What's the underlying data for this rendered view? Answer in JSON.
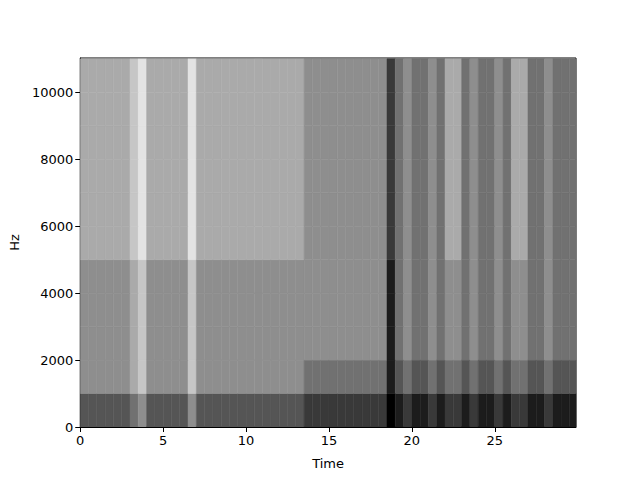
{
  "chart_data": {
    "type": "heatmap",
    "xlabel": "Time",
    "ylabel": "Hz",
    "xlim": [
      0,
      29.9
    ],
    "ylim": [
      0,
      11025
    ],
    "xticks": [
      0,
      5,
      10,
      15,
      20,
      25
    ],
    "yticks": [
      0,
      2000,
      4000,
      6000,
      8000,
      10000
    ],
    "grid": false,
    "value_range": [
      0,
      9
    ],
    "x": [
      0.25,
      0.75,
      1.25,
      1.75,
      2.25,
      2.75,
      3.25,
      3.75,
      4.25,
      4.75,
      5.25,
      5.75,
      6.25,
      6.75,
      7.25,
      7.75,
      8.25,
      8.75,
      9.25,
      9.75,
      10.25,
      10.75,
      11.25,
      11.75,
      12.25,
      12.75,
      13.25,
      13.75,
      14.25,
      14.75,
      15.25,
      15.75,
      16.25,
      16.75,
      17.25,
      17.75,
      18.25,
      18.75,
      19.25,
      19.75,
      20.25,
      20.75,
      21.25,
      21.75,
      22.25,
      22.75,
      23.25,
      23.75,
      24.25,
      24.75,
      25.25,
      25.75,
      26.25,
      26.75,
      27.25,
      27.75,
      28.25,
      28.75,
      29.25,
      29.75
    ],
    "y": [
      500,
      1500,
      2500,
      3500,
      4500,
      5500,
      6500,
      7500,
      8500,
      9500,
      10500
    ],
    "cells": [
      [
        6,
        6,
        6,
        6,
        6,
        6,
        5,
        4,
        6,
        6,
        6,
        6,
        6,
        4,
        6,
        6,
        6,
        6,
        6,
        6,
        6,
        6,
        6,
        6,
        6,
        6,
        6,
        7,
        7,
        7,
        7,
        7,
        7,
        7,
        7,
        7,
        7,
        9,
        8,
        7,
        8,
        8,
        7,
        8,
        7,
        7,
        8,
        7,
        8,
        8,
        7,
        8,
        7,
        7,
        8,
        8,
        7,
        8,
        8,
        8
      ],
      [
        4,
        4,
        4,
        4,
        4,
        4,
        3,
        2,
        4,
        4,
        4,
        4,
        4,
        2,
        4,
        4,
        4,
        4,
        4,
        4,
        4,
        4,
        4,
        4,
        4,
        4,
        4,
        5,
        5,
        5,
        5,
        5,
        5,
        5,
        5,
        5,
        5,
        8,
        6,
        5,
        6,
        6,
        5,
        6,
        5,
        5,
        6,
        5,
        6,
        6,
        5,
        6,
        5,
        5,
        6,
        6,
        5,
        6,
        6,
        6
      ],
      [
        4,
        4,
        4,
        4,
        4,
        4,
        3,
        2,
        4,
        4,
        4,
        4,
        4,
        2,
        4,
        4,
        4,
        4,
        4,
        4,
        4,
        4,
        4,
        4,
        4,
        4,
        4,
        4,
        4,
        4,
        4,
        4,
        4,
        4,
        4,
        4,
        4,
        8,
        5,
        4,
        5,
        5,
        4,
        5,
        4,
        4,
        5,
        4,
        5,
        5,
        4,
        5,
        4,
        4,
        5,
        5,
        4,
        5,
        5,
        5
      ],
      [
        4,
        4,
        4,
        4,
        4,
        4,
        3,
        2,
        4,
        4,
        4,
        4,
        4,
        2,
        4,
        4,
        4,
        4,
        4,
        4,
        4,
        4,
        4,
        4,
        4,
        4,
        4,
        4,
        4,
        4,
        4,
        4,
        4,
        4,
        4,
        4,
        4,
        8,
        5,
        4,
        5,
        5,
        4,
        5,
        4,
        4,
        5,
        4,
        5,
        5,
        4,
        5,
        4,
        4,
        5,
        5,
        4,
        5,
        5,
        5
      ],
      [
        4,
        4,
        4,
        4,
        4,
        4,
        3,
        2,
        4,
        4,
        4,
        4,
        4,
        2,
        4,
        4,
        4,
        4,
        4,
        4,
        4,
        4,
        4,
        4,
        4,
        4,
        4,
        4,
        4,
        4,
        4,
        4,
        4,
        4,
        4,
        4,
        4,
        8,
        5,
        4,
        5,
        5,
        4,
        5,
        4,
        4,
        5,
        4,
        5,
        5,
        4,
        5,
        4,
        4,
        5,
        5,
        4,
        5,
        5,
        5
      ],
      [
        3,
        3,
        3,
        3,
        3,
        3,
        2,
        1,
        3,
        3,
        3,
        3,
        3,
        1,
        3,
        3,
        3,
        3,
        3,
        3,
        3,
        3,
        3,
        3,
        3,
        3,
        3,
        4,
        4,
        4,
        4,
        4,
        4,
        4,
        4,
        4,
        4,
        7,
        5,
        4,
        5,
        5,
        4,
        5,
        3,
        3,
        5,
        4,
        5,
        5,
        4,
        5,
        3,
        3,
        5,
        5,
        4,
        5,
        5,
        5
      ],
      [
        3,
        3,
        3,
        3,
        3,
        3,
        2,
        1,
        3,
        3,
        3,
        3,
        3,
        1,
        3,
        3,
        3,
        3,
        3,
        3,
        3,
        3,
        3,
        3,
        3,
        3,
        3,
        4,
        4,
        4,
        4,
        4,
        4,
        4,
        4,
        4,
        4,
        7,
        5,
        4,
        5,
        5,
        4,
        5,
        3,
        3,
        5,
        4,
        5,
        5,
        4,
        5,
        3,
        3,
        5,
        5,
        4,
        5,
        5,
        5
      ],
      [
        3,
        3,
        3,
        3,
        3,
        3,
        2,
        1,
        3,
        3,
        3,
        3,
        3,
        1,
        3,
        3,
        3,
        3,
        3,
        3,
        3,
        3,
        3,
        3,
        3,
        3,
        3,
        4,
        4,
        4,
        4,
        4,
        4,
        4,
        4,
        4,
        4,
        7,
        5,
        4,
        5,
        5,
        4,
        5,
        3,
        3,
        5,
        4,
        5,
        5,
        4,
        5,
        3,
        3,
        5,
        5,
        4,
        5,
        5,
        5
      ],
      [
        3,
        3,
        3,
        3,
        3,
        3,
        2,
        1,
        3,
        3,
        3,
        3,
        3,
        1,
        3,
        3,
        3,
        3,
        3,
        3,
        3,
        3,
        3,
        3,
        3,
        3,
        3,
        4,
        4,
        4,
        4,
        4,
        4,
        4,
        4,
        4,
        4,
        7,
        5,
        4,
        5,
        5,
        4,
        5,
        3,
        3,
        5,
        4,
        5,
        5,
        4,
        5,
        3,
        3,
        5,
        5,
        4,
        5,
        5,
        5
      ],
      [
        3,
        3,
        3,
        3,
        3,
        3,
        2,
        1,
        3,
        3,
        3,
        3,
        3,
        1,
        3,
        3,
        3,
        3,
        3,
        3,
        3,
        3,
        3,
        3,
        3,
        3,
        3,
        4,
        4,
        4,
        4,
        4,
        4,
        4,
        4,
        4,
        4,
        7,
        5,
        4,
        5,
        5,
        4,
        5,
        3,
        3,
        5,
        4,
        5,
        5,
        4,
        5,
        3,
        3,
        5,
        5,
        4,
        5,
        5,
        5
      ],
      [
        3,
        3,
        3,
        3,
        3,
        3,
        2,
        1,
        3,
        3,
        3,
        3,
        3,
        1,
        3,
        3,
        3,
        3,
        3,
        3,
        3,
        3,
        3,
        3,
        3,
        3,
        3,
        4,
        4,
        4,
        4,
        4,
        4,
        4,
        4,
        4,
        4,
        7,
        5,
        4,
        5,
        5,
        4,
        5,
        3,
        3,
        5,
        4,
        5,
        5,
        4,
        5,
        3,
        3,
        5,
        5,
        4,
        5,
        5,
        5
      ]
    ]
  }
}
